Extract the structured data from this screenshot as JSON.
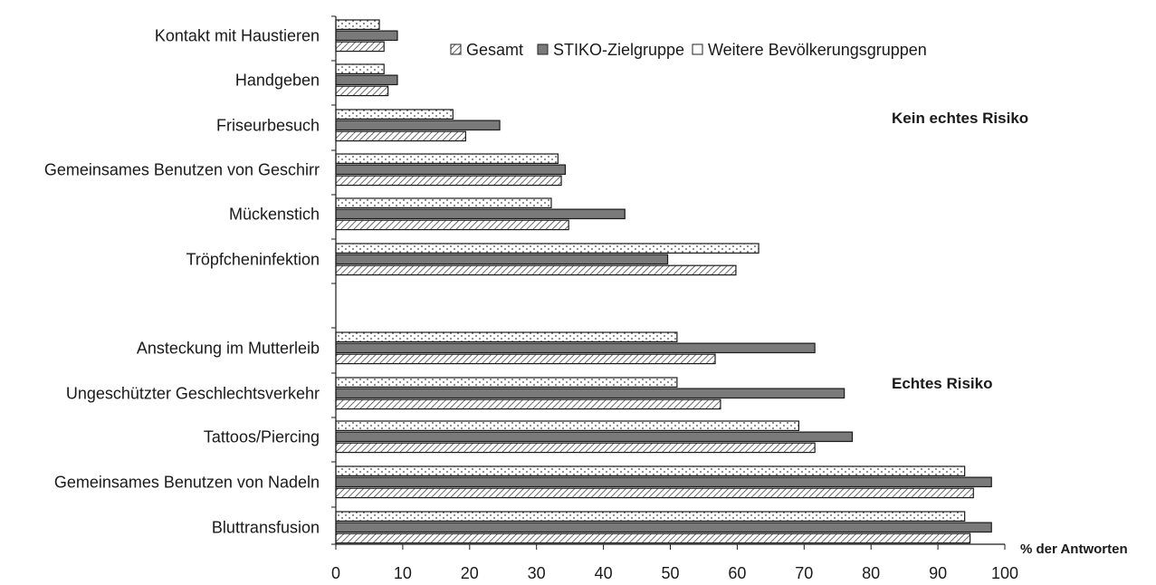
{
  "chart_data": {
    "type": "bar",
    "orientation": "horizontal",
    "categories": [
      "Kontakt mit Haustieren",
      "Handgeben",
      "Friseurbesuch",
      "Gemeinsames Benutzen von Geschirr",
      "Mückenstich",
      "Tröpfcheninfektion",
      "Ansteckung im Mutterleib",
      "Ungeschützter Geschlechtsverkehr",
      "Tattoos/Piercing",
      "Gemeinsames Benutzen von Nadeln",
      "Bluttransfusion"
    ],
    "series": [
      {
        "name": "Weitere Bevölkerungsgruppen",
        "values": [
          6.5,
          7.2,
          17.5,
          33.2,
          32.2,
          63.2,
          51.0,
          51.0,
          69.2,
          94.0,
          94.0
        ]
      },
      {
        "name": "STIKO-Zielgruppe",
        "values": [
          9.2,
          9.2,
          24.5,
          34.3,
          43.2,
          49.6,
          71.6,
          76.0,
          77.2,
          98.0,
          98.0
        ]
      },
      {
        "name": "Gesamt",
        "values": [
          7.2,
          7.8,
          19.4,
          33.7,
          34.8,
          59.8,
          56.7,
          57.5,
          71.6,
          95.3,
          94.8
        ]
      }
    ],
    "legend": [
      "Gesamt",
      "STIKO-Zielgruppe",
      "Weitere Bevölkerungsgruppen"
    ],
    "legend_position": "top-right",
    "xlabel": "% der Antworten",
    "xlim": [
      0,
      100
    ],
    "xticks": [
      0,
      10,
      20,
      30,
      40,
      50,
      60,
      70,
      80,
      90,
      100
    ],
    "annotations": [
      "Kein echtes Risiko",
      "Echtes Risiko"
    ],
    "grid": false
  }
}
